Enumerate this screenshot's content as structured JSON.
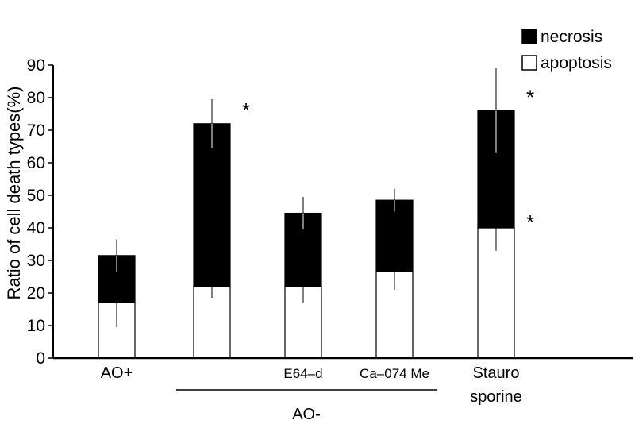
{
  "chart_data": {
    "type": "bar",
    "stacked": true,
    "ylabel": "Ratio of cell death types(%)",
    "ylim": [
      0,
      90
    ],
    "yticks": [
      0,
      10,
      20,
      30,
      40,
      50,
      60,
      70,
      80,
      90
    ],
    "grid": false,
    "legend_position": "top-right",
    "categories": [
      "AO+",
      "",
      "E64–d",
      "Ca–074 Me",
      "Stauro\nsporine"
    ],
    "group_label": {
      "text": "AO-",
      "spans": [
        "",
        "E64–d",
        "Ca–074 Me"
      ]
    },
    "series": [
      {
        "name": "apoptosis",
        "color": "#ffffff",
        "values": [
          17,
          22,
          22,
          26.5,
          40
        ],
        "error": [
          7.5,
          3.5,
          5,
          5.5,
          7
        ]
      },
      {
        "name": "necrosis",
        "color": "#000000",
        "values": [
          14.5,
          50,
          22.5,
          22,
          36
        ],
        "error": [
          5,
          7.5,
          5,
          3.5,
          13
        ]
      }
    ],
    "annotations": [
      {
        "text": "*",
        "category_index": 1,
        "series": "necrosis"
      },
      {
        "text": "*",
        "category_index": 4,
        "series": "necrosis"
      },
      {
        "text": "*",
        "category_index": 4,
        "series": "apoptosis"
      }
    ]
  }
}
